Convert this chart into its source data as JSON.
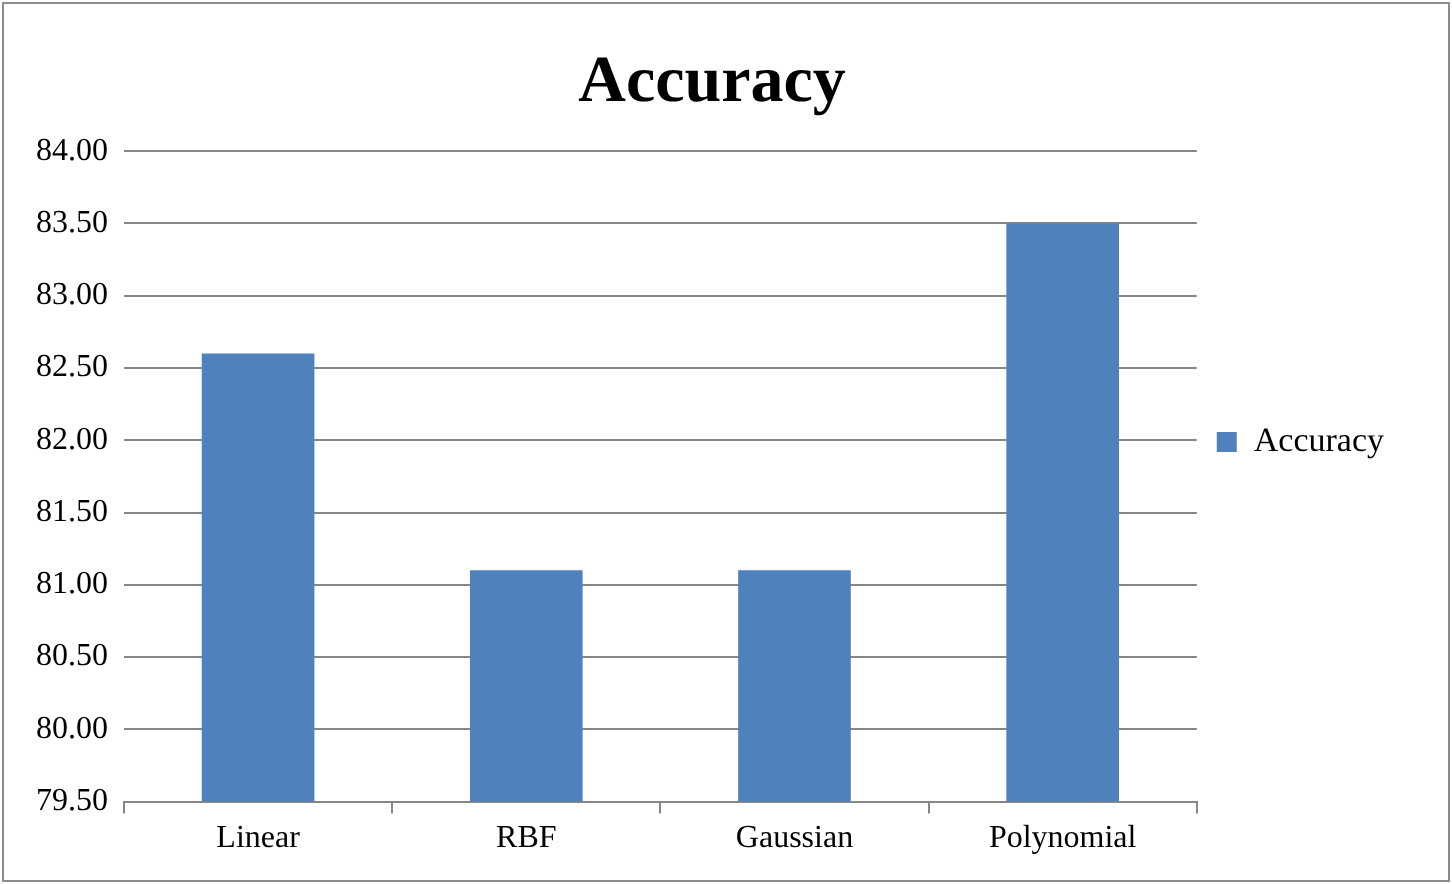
{
  "chart_data": {
    "type": "bar",
    "title": "Accuracy",
    "categories": [
      "Linear",
      "RBF",
      "Gaussian",
      "Polynomial"
    ],
    "series": [
      {
        "name": "Accuracy",
        "color": "#4f81bd",
        "values": [
          82.6,
          81.1,
          81.1,
          83.5
        ]
      }
    ],
    "ylim": [
      79.5,
      84
    ],
    "yticks": [
      {
        "value": 79.5,
        "label": "79.50"
      },
      {
        "value": 80,
        "label": "80.00"
      },
      {
        "value": 80.5,
        "label": "80.50"
      },
      {
        "value": 81,
        "label": "81.00"
      },
      {
        "value": 81.5,
        "label": "81.50"
      },
      {
        "value": 82,
        "label": "82.00"
      },
      {
        "value": 82.5,
        "label": "82.50"
      },
      {
        "value": 83,
        "label": "83.00"
      },
      {
        "value": 83.5,
        "label": "83.50"
      },
      {
        "value": 84,
        "label": "84.00"
      }
    ],
    "grid": "y",
    "legend": "right"
  }
}
